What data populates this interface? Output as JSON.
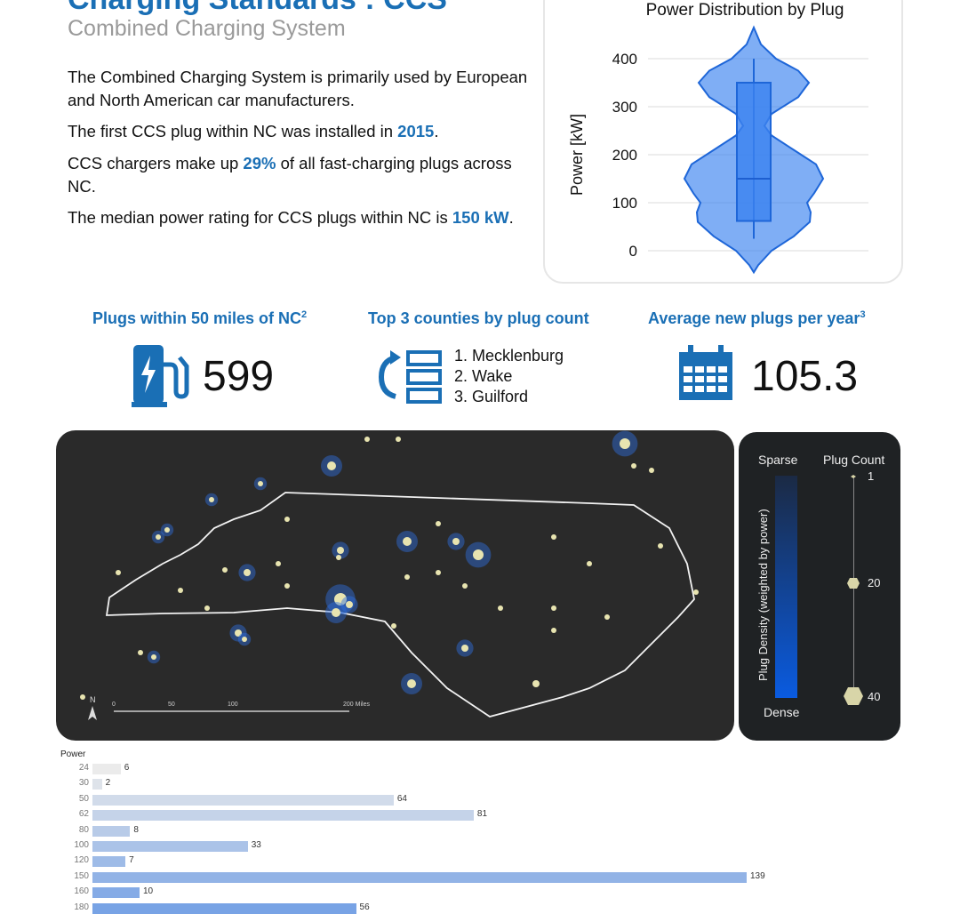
{
  "header": {
    "title": "Charging Standards : CCS",
    "subtitle": "Combined Charging System"
  },
  "paragraphs": [
    {
      "pre": "The Combined Charging System is primarily used by European and North American car manufacturers.",
      "hl": "",
      "post": ""
    },
    {
      "pre": "The first CCS plug within NC was installed in ",
      "hl": "2015",
      "post": "."
    },
    {
      "pre": "CCS chargers make up ",
      "hl": "29%",
      "post": " of all fast-charging plugs across NC."
    },
    {
      "pre": "The median power rating for CCS plugs within NC is ",
      "hl": "150 kW",
      "post": "."
    }
  ],
  "stats": {
    "plugs": {
      "label": "Plugs within 50 miles of NC",
      "sup": "2",
      "value": "599",
      "icon": "ev-charger-icon"
    },
    "counties": {
      "label": "Top 3 counties by plug count",
      "items": [
        "1. Mecklenburg",
        "2. Wake",
        "3. Guilford"
      ],
      "icon": "ranked-list-icon"
    },
    "avg": {
      "label": "Average new plugs per year",
      "sup": "3",
      "value": "105.3",
      "icon": "calendar-icon"
    }
  },
  "map": {
    "north": "N",
    "scale_ticks": [
      "0",
      "50",
      "100",
      "200 Miles"
    ]
  },
  "legend": {
    "sparse": "Sparse",
    "dense": "Dense",
    "density_title": "Plug Density (weighted by power)",
    "count_title": "Plug Count",
    "counts": [
      "1",
      "20",
      "40"
    ],
    "gradient": [
      "#1b2a44",
      "#0a5be0"
    ]
  },
  "chart_data": [
    {
      "type": "violin",
      "title": "Power Distribution by Plug",
      "ylabel": "Power [kW]",
      "yticks": [
        0,
        100,
        200,
        300,
        400
      ],
      "ylim": [
        -40,
        470
      ],
      "grid": true,
      "box": {
        "whisker_low": 25,
        "q1": 62,
        "median": 150,
        "q3": 350,
        "whisker_high": 400
      },
      "density_peaks_kW": [
        150,
        350
      ],
      "color": "#3b82f0"
    },
    {
      "type": "bar",
      "orientation": "horizontal",
      "ylabel": "Power",
      "categories": [
        "24",
        "30",
        "50",
        "62",
        "80",
        "100",
        "120",
        "150",
        "160",
        "180"
      ],
      "values": [
        6,
        2,
        64,
        81,
        8,
        33,
        7,
        139,
        10,
        56
      ]
    }
  ]
}
